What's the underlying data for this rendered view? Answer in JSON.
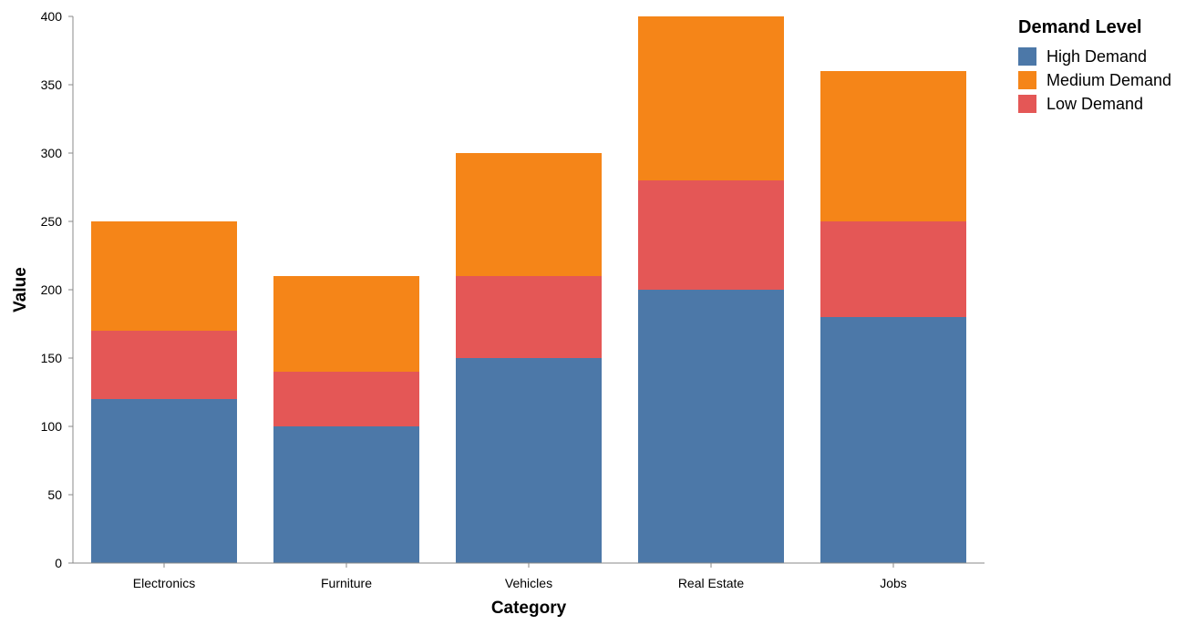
{
  "chart_data": {
    "type": "bar",
    "stacked": true,
    "categories": [
      "Electronics",
      "Furniture",
      "Vehicles",
      "Real Estate",
      "Jobs"
    ],
    "series": [
      {
        "name": "High Demand",
        "values": [
          120,
          100,
          150,
          200,
          180
        ],
        "color": "#4c78a8"
      },
      {
        "name": "Low Demand",
        "values": [
          50,
          40,
          60,
          80,
          70
        ],
        "color": "#e45756"
      },
      {
        "name": "Medium Demand",
        "values": [
          80,
          70,
          90,
          120,
          110
        ],
        "color": "#f58518"
      }
    ],
    "xlabel": "Category",
    "ylabel": "Value",
    "ylim": [
      0,
      400
    ],
    "yticks": [
      0,
      50,
      100,
      150,
      200,
      250,
      300,
      350,
      400
    ],
    "grid": false,
    "legend": {
      "title": "Demand Level",
      "position": "top-right",
      "entries": [
        "High Demand",
        "Medium Demand",
        "Low Demand"
      ]
    }
  }
}
